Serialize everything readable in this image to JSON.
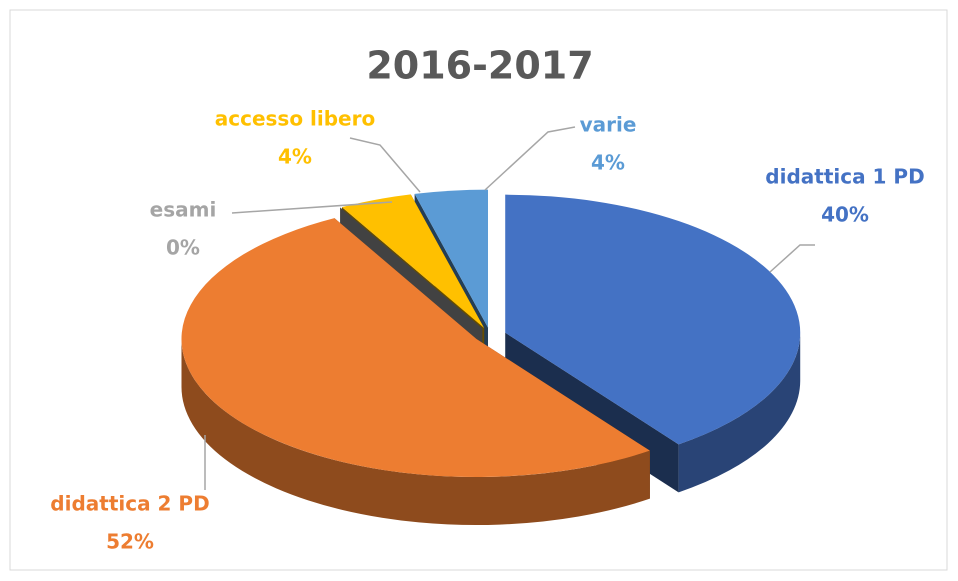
{
  "chart_data": {
    "type": "pie",
    "title": "2016-2017",
    "categories": [
      "didattica 1 PD",
      "didattica 2 PD",
      "esami",
      "accesso libero",
      "varie"
    ],
    "values": [
      40,
      52,
      0,
      4,
      4
    ],
    "value_labels": [
      "40%",
      "52%",
      "0%",
      "4%",
      "4%"
    ],
    "colors": [
      "#4472c4",
      "#ed7d31",
      "#a5a5a5",
      "#ffc000",
      "#5b9bd5"
    ]
  }
}
